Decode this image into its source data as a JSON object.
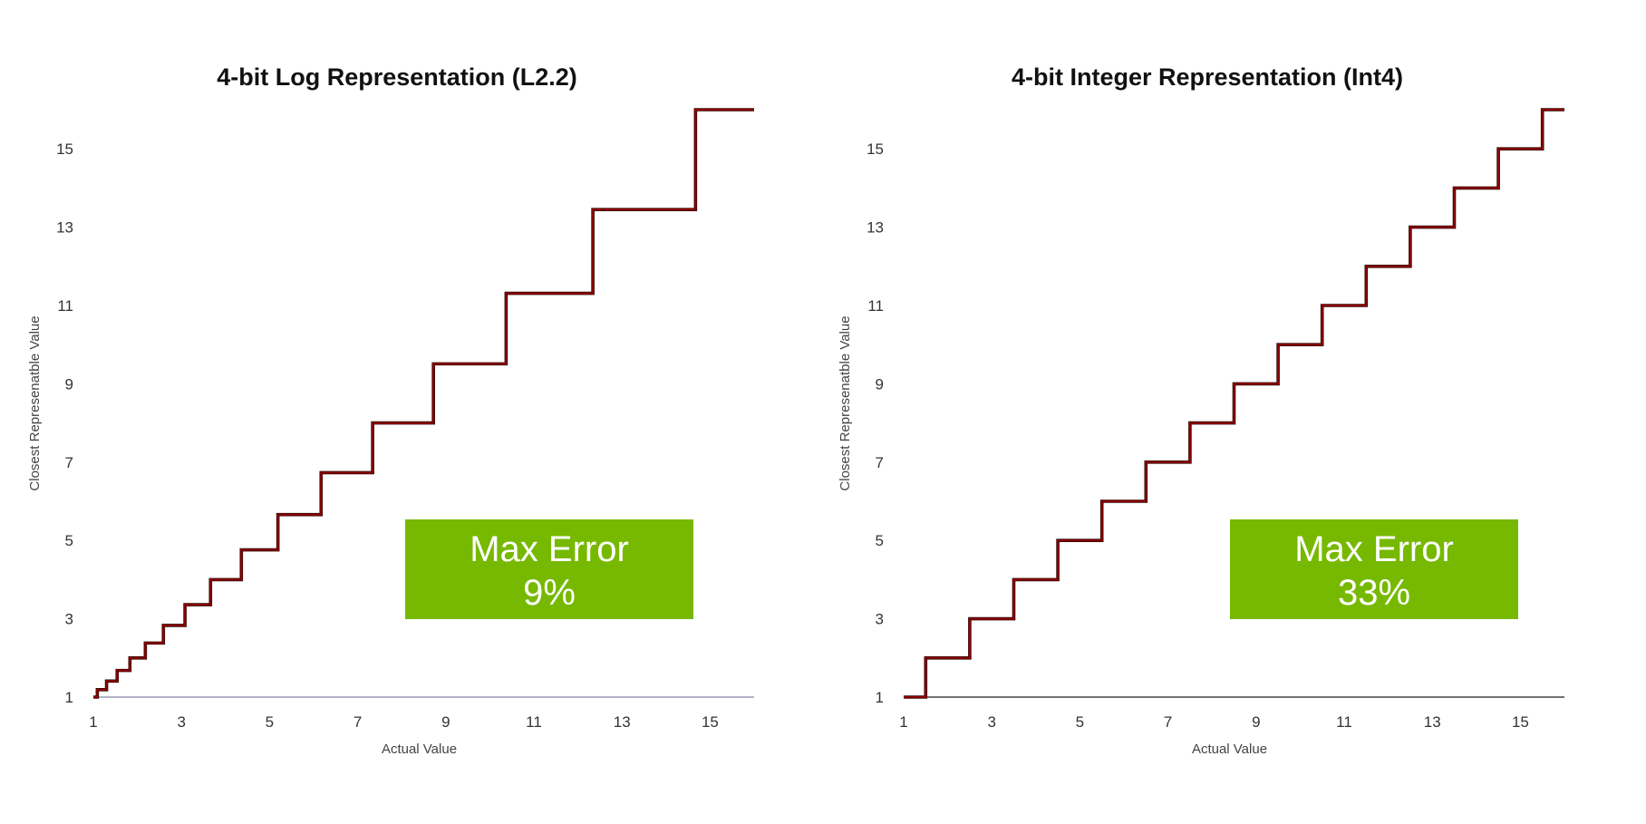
{
  "chart_data": [
    {
      "type": "line",
      "step": true,
      "title": "4-bit Log Representation (L2.2)",
      "xlabel": "Actual Value",
      "ylabel": "Closest Represenatble Value",
      "xlim": [
        1,
        16
      ],
      "ylim": [
        1,
        16
      ],
      "xticks": [
        1,
        3,
        5,
        7,
        9,
        11,
        13,
        15
      ],
      "yticks": [
        1,
        3,
        5,
        7,
        9,
        11,
        13,
        15
      ],
      "grid": false,
      "line_color": "#8b0000",
      "badge": {
        "line1": "Max Error",
        "line2": "9%",
        "color": "#76b900"
      },
      "series": [
        {
          "steps": [
            {
              "x": 1.0,
              "y": 1.0
            },
            {
              "x": 1.09,
              "y": 1.19
            },
            {
              "x": 1.3,
              "y": 1.41
            },
            {
              "x": 1.54,
              "y": 1.68
            },
            {
              "x": 1.83,
              "y": 2.0
            },
            {
              "x": 2.18,
              "y": 2.38
            },
            {
              "x": 2.59,
              "y": 2.83
            },
            {
              "x": 3.08,
              "y": 3.36
            },
            {
              "x": 3.66,
              "y": 4.0
            },
            {
              "x": 4.36,
              "y": 4.76
            },
            {
              "x": 5.19,
              "y": 5.66
            },
            {
              "x": 6.17,
              "y": 6.73
            },
            {
              "x": 7.34,
              "y": 8.0
            },
            {
              "x": 8.72,
              "y": 9.51
            },
            {
              "x": 10.37,
              "y": 11.31
            },
            {
              "x": 12.34,
              "y": 13.45
            },
            {
              "x": 14.67,
              "y": 16.0
            }
          ],
          "x_end": 16.0
        }
      ]
    },
    {
      "type": "line",
      "step": true,
      "title": "4-bit Integer Representation (Int4)",
      "xlabel": "Actual Value",
      "ylabel": "Closest Represenatble Value",
      "xlim": [
        1,
        16
      ],
      "ylim": [
        1,
        16
      ],
      "xticks": [
        1,
        3,
        5,
        7,
        9,
        11,
        13,
        15
      ],
      "yticks": [
        1,
        3,
        5,
        7,
        9,
        11,
        13,
        15
      ],
      "grid": false,
      "line_color": "#8b0000",
      "badge": {
        "line1": "Max Error",
        "line2": "33%",
        "color": "#76b900"
      },
      "series": [
        {
          "steps": [
            {
              "x": 1.0,
              "y": 1
            },
            {
              "x": 1.5,
              "y": 2
            },
            {
              "x": 2.5,
              "y": 3
            },
            {
              "x": 3.5,
              "y": 4
            },
            {
              "x": 4.5,
              "y": 5
            },
            {
              "x": 5.5,
              "y": 6
            },
            {
              "x": 6.5,
              "y": 7
            },
            {
              "x": 7.5,
              "y": 8
            },
            {
              "x": 8.5,
              "y": 9
            },
            {
              "x": 9.5,
              "y": 10
            },
            {
              "x": 10.5,
              "y": 11
            },
            {
              "x": 11.5,
              "y": 12
            },
            {
              "x": 12.5,
              "y": 13
            },
            {
              "x": 13.5,
              "y": 14
            },
            {
              "x": 14.5,
              "y": 15
            },
            {
              "x": 15.5,
              "y": 16
            }
          ],
          "x_end": 16.0
        }
      ]
    }
  ]
}
